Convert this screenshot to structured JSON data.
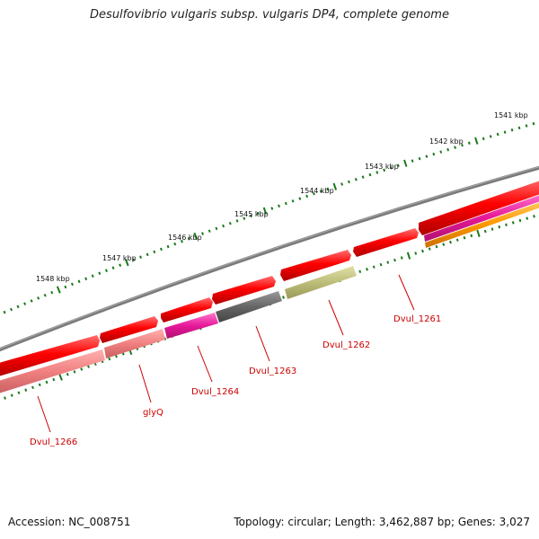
{
  "header": {
    "title": "Desulfovibrio vulgaris subsp. vulgaris DP4, complete genome"
  },
  "footer": {
    "accession": "Accession: NC_008751",
    "topology": "Topology: circular; Length: 3,462,887 bp; Genes: 3,027"
  },
  "map": {
    "backbone_color": "#808080",
    "tick_color": "#1a7a1a",
    "label_color": "#cc0000",
    "scale_labels": [
      "1541 kbp",
      "1542 kbp",
      "1543 kbp",
      "1544 kbp",
      "1545 kbp",
      "1546 kbp",
      "1547 kbp",
      "1548 kbp"
    ],
    "genes": [
      {
        "name": "Dvul_1261",
        "color": "#e60000"
      },
      {
        "name": "Dvul_1262",
        "color": "#bdbd7a"
      },
      {
        "name": "Dvul_1263",
        "color": "#666666"
      },
      {
        "name": "Dvul_1264",
        "color": "#e6199a"
      },
      {
        "name": "glyQ",
        "color": "#f08080"
      },
      {
        "name": "Dvul_1266",
        "color": "#f08080"
      }
    ],
    "forward_genes": {
      "color": "#e60000"
    },
    "extra_features": [
      {
        "color": "#e6199a"
      },
      {
        "color": "#ff9900"
      }
    ]
  }
}
